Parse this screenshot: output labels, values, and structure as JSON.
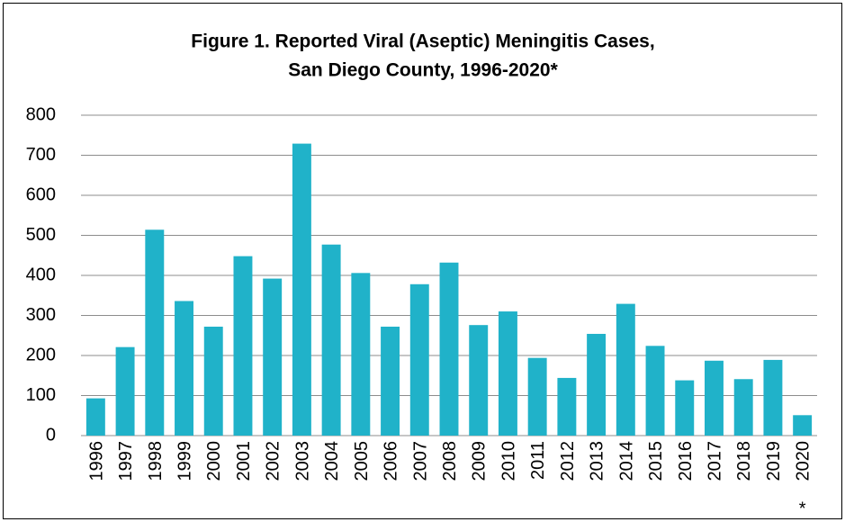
{
  "chart_data": {
    "type": "bar",
    "title": [
      "Figure 1. Reported Viral (Aseptic) Meningitis Cases,",
      "San Diego County, 1996-2020*"
    ],
    "categories": [
      "1996",
      "1997",
      "1998",
      "1999",
      "2000",
      "2001",
      "2002",
      "2003",
      "2004",
      "2005",
      "2006",
      "2007",
      "2008",
      "2009",
      "2010",
      "2011",
      "2012",
      "2013",
      "2014",
      "2015",
      "2016",
      "2017",
      "2018",
      "2019",
      "2020"
    ],
    "values": [
      93,
      221,
      514,
      336,
      272,
      448,
      392,
      729,
      477,
      406,
      272,
      378,
      432,
      276,
      310,
      194,
      144,
      254,
      329,
      224,
      138,
      187,
      141,
      189,
      51
    ],
    "annotation": "*",
    "color": "#20b2c9",
    "ylim": [
      0,
      800
    ],
    "yticks": [
      0,
      100,
      200,
      300,
      400,
      500,
      600,
      700,
      800
    ],
    "grid": true
  }
}
